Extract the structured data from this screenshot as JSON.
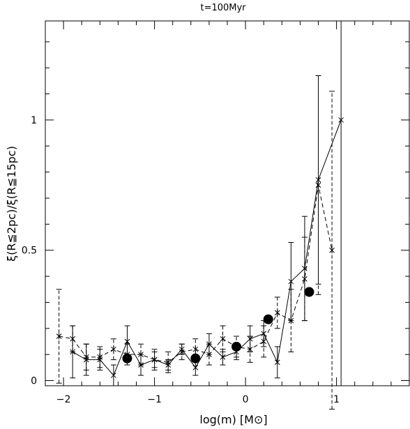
{
  "chart_data": {
    "type": "line",
    "title": "t=100Myr",
    "xlabel": "log(m)  [M⊙]",
    "ylabel": "ξ(R≦2pc)/ξ(R≦15pc)",
    "xlim": [
      -2.2,
      1.8
    ],
    "ylim": [
      -0.02,
      1.38
    ],
    "xticks": [
      -2,
      -1,
      0,
      1
    ],
    "xtick_labels": [
      "−2",
      "−1",
      "0",
      "1"
    ],
    "yticks": [
      0,
      0.5,
      1
    ],
    "ytick_labels": [
      "0",
      "0.5",
      "1"
    ],
    "grid": false,
    "legend": "none",
    "reference_lines": [
      {
        "orientation": "vertical",
        "x": 1.05,
        "style": "solid"
      }
    ],
    "series": [
      {
        "style": "solid",
        "marker": "x",
        "x": [
          -1.9,
          -1.75,
          -1.6,
          -1.45,
          -1.3,
          -1.15,
          -1.0,
          -0.85,
          -0.7,
          -0.55,
          -0.4,
          -0.25,
          -0.1,
          0.05,
          0.2,
          0.35,
          0.5,
          0.65,
          0.8,
          1.05
        ],
        "y": [
          0.11,
          0.08,
          0.08,
          0.02,
          0.15,
          0.06,
          0.08,
          0.06,
          0.12,
          0.05,
          0.14,
          0.09,
          0.11,
          0.16,
          0.18,
          0.07,
          0.38,
          0.43,
          0.77,
          1.0
        ],
        "err": [
          0.1,
          0.06,
          0.04,
          0.04,
          0.06,
          0.04,
          0.03,
          0.02,
          0.02,
          0.03,
          0.04,
          0.03,
          0.03,
          0.05,
          0.05,
          0.06,
          0.15,
          0.2,
          0.4,
          0
        ]
      },
      {
        "style": "dashed",
        "marker": "asterisk",
        "x": [
          -2.05,
          -1.9,
          -1.75,
          -1.6,
          -1.45,
          -1.3,
          -1.15,
          -1.0,
          -0.85,
          -0.7,
          -0.55,
          -0.4,
          -0.25,
          -0.1,
          0.05,
          0.2,
          0.35,
          0.5,
          0.65,
          0.8,
          0.95
        ],
        "y": [
          0.17,
          0.16,
          0.09,
          0.09,
          0.12,
          0.1,
          0.1,
          0.08,
          0.07,
          0.11,
          0.12,
          0.1,
          0.16,
          0.13,
          0.12,
          0.15,
          0.26,
          0.23,
          0.39,
          0.75,
          0.5
        ],
        "err": [
          0.18,
          0.05,
          0.05,
          0.04,
          0.04,
          0.04,
          0.04,
          0.04,
          0.04,
          0.03,
          0.04,
          0.04,
          0.05,
          0.04,
          0.05,
          0.06,
          0.06,
          0.12,
          0.16,
          0.42,
          0.61
        ]
      },
      {
        "style": "none",
        "marker": "filled-circle",
        "x": [
          -1.3,
          -0.55,
          -0.1,
          0.25,
          0.7
        ],
        "y": [
          0.085,
          0.085,
          0.13,
          0.235,
          0.34
        ]
      }
    ]
  }
}
